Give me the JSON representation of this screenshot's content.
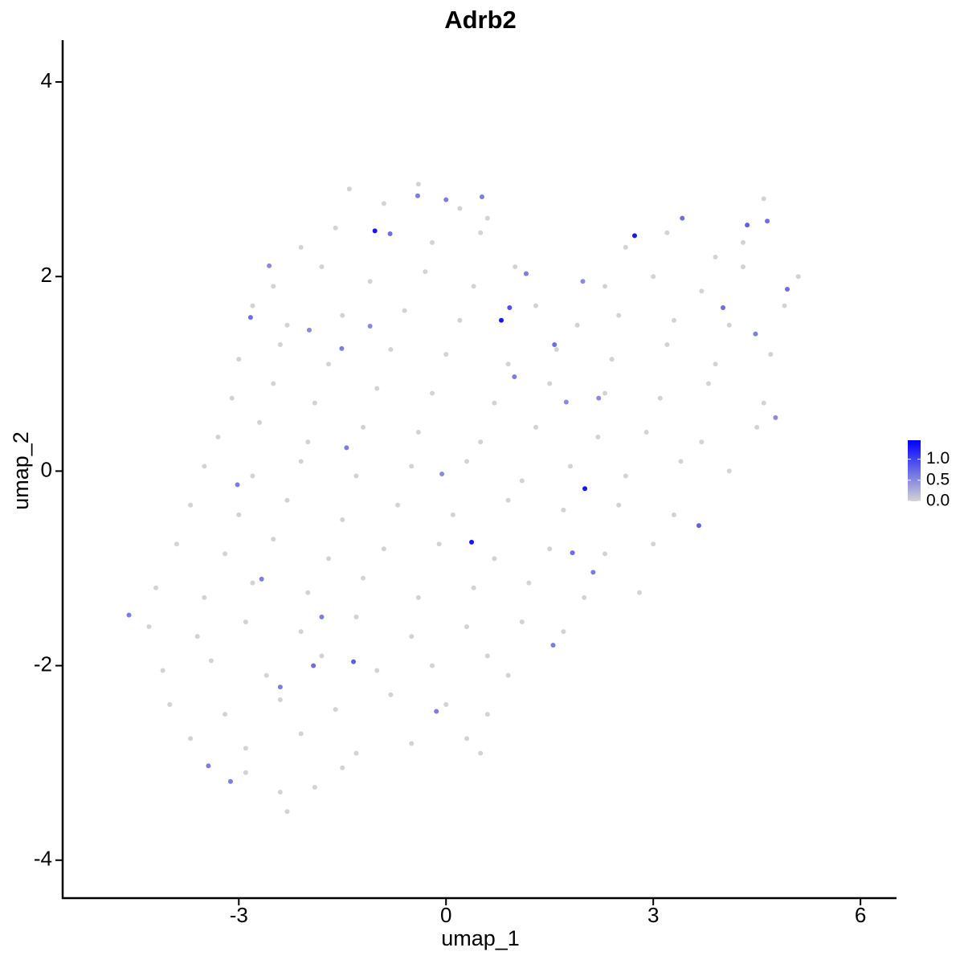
{
  "chart_data": {
    "type": "scatter",
    "title": "Adrb2",
    "xlabel": "umap_1",
    "ylabel": "umap_2",
    "xlim": [
      -5.55,
      6.51
    ],
    "ylim": [
      -4.39,
      4.43
    ],
    "xticks": [
      -3,
      0,
      3,
      6
    ],
    "yticks": [
      -4,
      -2,
      0,
      2,
      4
    ],
    "colorbar": {
      "lim": [
        0,
        1.45
      ],
      "ticks": [
        {
          "value": 0,
          "label": "0.0"
        },
        {
          "value": 0.5,
          "label": "0.5"
        },
        {
          "value": 1,
          "label": "1.0"
        }
      ],
      "low_color": "#d3d3d3",
      "high_color": "#0000ff"
    },
    "points": {
      "x": [
        -1.4,
        -0.9,
        -0.4,
        0.2,
        0.6,
        -2.1,
        -1.6,
        -0.2,
        0.5,
        2.6,
        3.2,
        3.9,
        4.6,
        4.3,
        -2.5,
        -1.8,
        -1.1,
        -0.3,
        0.4,
        1.0,
        2.3,
        3.0,
        3.7,
        4.3,
        5.1,
        -2.8,
        -2.3,
        -1.5,
        -0.6,
        0.2,
        1.3,
        1.9,
        2.5,
        3.3,
        4.1,
        4.9,
        -3.0,
        -2.4,
        -1.7,
        -0.8,
        0.0,
        0.9,
        1.6,
        2.4,
        3.2,
        3.9,
        4.7,
        -3.1,
        -2.5,
        -1.9,
        -1.0,
        -0.2,
        0.7,
        1.5,
        2.3,
        3.1,
        3.8,
        4.6,
        -3.3,
        -2.7,
        -2.0,
        -1.2,
        -0.4,
        0.5,
        1.3,
        2.2,
        2.9,
        3.7,
        4.5,
        -3.5,
        -2.8,
        -2.1,
        -1.3,
        -0.5,
        0.3,
        1.1,
        1.8,
        2.6,
        3.4,
        4.1,
        -3.7,
        -3.0,
        -2.3,
        -1.5,
        -0.7,
        0.1,
        0.9,
        1.7,
        2.5,
        3.3,
        -3.9,
        -3.2,
        -2.5,
        -1.7,
        -0.9,
        -0.1,
        0.7,
        1.5,
        2.3,
        3.0,
        -4.2,
        -3.5,
        -2.8,
        -2.0,
        -1.2,
        -0.4,
        0.4,
        1.2,
        2.0,
        2.8,
        -4.3,
        -3.6,
        -2.9,
        -2.1,
        -1.3,
        -0.5,
        0.3,
        1.1,
        1.7,
        -4.1,
        -3.4,
        -2.6,
        -1.8,
        -1.0,
        -0.2,
        0.6,
        0.9,
        -4.0,
        -3.2,
        -2.4,
        -1.6,
        -0.8,
        0.0,
        0.6,
        -3.7,
        -2.9,
        -2.1,
        -1.3,
        -0.5,
        0.3,
        0.5,
        -2.9,
        -2.4,
        -1.9,
        -2.3,
        -1.5,
        -1.03,
        2.73,
        0.8,
        2.01,
        0.37,
        0.92,
        -0.81,
        -2.83,
        -1.51,
        -1.44,
        -1.34,
        -1.92,
        3.66,
        3.42,
        4.36,
        4.65,
        4.94,
        4.48,
        4.01,
        1.57,
        1.83,
        2.13,
        1.55,
        -0.14,
        -2.4,
        -3.12,
        -3.44,
        -3.02,
        -2.67,
        -4.59,
        -1.8,
        0.0,
        0.52,
        -0.41,
        1.16,
        1.98,
        0.99,
        -0.06,
        -1.98,
        -2.56,
        -1.1,
        2.21,
        4.77,
        1.74
      ],
      "y": [
        2.9,
        2.75,
        2.95,
        2.7,
        2.6,
        2.3,
        2.5,
        2.35,
        2.45,
        2.3,
        2.45,
        2.2,
        2.8,
        2.35,
        1.9,
        2.1,
        1.95,
        2.05,
        1.9,
        2.1,
        1.9,
        2.0,
        1.85,
        2.1,
        2.0,
        1.7,
        1.5,
        1.6,
        1.65,
        1.55,
        1.7,
        1.5,
        1.6,
        1.55,
        1.5,
        1.7,
        1.15,
        1.3,
        1.1,
        1.25,
        1.2,
        1.1,
        1.25,
        1.15,
        1.3,
        1.1,
        1.2,
        0.75,
        0.9,
        0.7,
        0.85,
        0.8,
        0.7,
        0.9,
        0.8,
        0.75,
        0.9,
        0.7,
        0.35,
        0.5,
        0.3,
        0.45,
        0.4,
        0.3,
        0.45,
        0.35,
        0.4,
        0.3,
        0.45,
        0.05,
        -0.05,
        0.1,
        -0.05,
        0.05,
        0.1,
        -0.1,
        0.05,
        -0.05,
        0.1,
        0.0,
        -0.35,
        -0.45,
        -0.3,
        -0.5,
        -0.35,
        -0.45,
        -0.3,
        -0.4,
        -0.35,
        -0.45,
        -0.75,
        -0.85,
        -0.7,
        -0.9,
        -0.8,
        -0.75,
        -0.9,
        -0.8,
        -0.85,
        -0.75,
        -1.2,
        -1.3,
        -1.15,
        -1.25,
        -1.1,
        -1.3,
        -1.2,
        -1.15,
        -1.3,
        -1.25,
        -1.6,
        -1.7,
        -1.55,
        -1.65,
        -1.5,
        -1.7,
        -1.6,
        -1.55,
        -1.65,
        -2.05,
        -1.95,
        -2.1,
        -1.9,
        -2.05,
        -2.0,
        -1.9,
        -2.1,
        -2.4,
        -2.5,
        -2.35,
        -2.45,
        -2.3,
        -2.4,
        -2.5,
        -2.75,
        -2.85,
        -2.7,
        -2.9,
        -2.8,
        -2.75,
        -2.9,
        -3.1,
        -3.3,
        -3.25,
        -3.5,
        -3.05,
        2.47,
        2.42,
        1.55,
        -0.18,
        -0.73,
        1.68,
        2.44,
        1.58,
        1.26,
        0.24,
        -1.96,
        -2.0,
        -0.56,
        2.6,
        2.53,
        2.57,
        1.87,
        1.41,
        1.68,
        1.3,
        -0.84,
        -1.04,
        -1.79,
        -2.47,
        -2.22,
        -3.19,
        -3.03,
        -0.14,
        -1.11,
        -1.48,
        -1.5,
        2.79,
        2.82,
        2.83,
        2.03,
        1.95,
        0.97,
        -0.03,
        1.45,
        2.11,
        1.49,
        0.75,
        0.55,
        0.71
      ],
      "expression": [
        0,
        0,
        0,
        0,
        0,
        0,
        0,
        0,
        0,
        0,
        0,
        0,
        0,
        0,
        0,
        0,
        0,
        0,
        0,
        0,
        0,
        0,
        0,
        0,
        0,
        0,
        0,
        0,
        0,
        0,
        0,
        0,
        0,
        0,
        0,
        0,
        0,
        0,
        0,
        0,
        0,
        0,
        0,
        0,
        0,
        0,
        0,
        0,
        0,
        0,
        0,
        0,
        0,
        0,
        0,
        0,
        0,
        0,
        0,
        0,
        0,
        0,
        0,
        0,
        0,
        0,
        0,
        0,
        0,
        0,
        0,
        0,
        0,
        0,
        0,
        0,
        0,
        0,
        0,
        0,
        0,
        0,
        0,
        0,
        0,
        0,
        0,
        0,
        0,
        0,
        0,
        0,
        0,
        0,
        0,
        0,
        0,
        0,
        0,
        0,
        0,
        0,
        0,
        0,
        0,
        0,
        0,
        0,
        0,
        0,
        0,
        0,
        0,
        0,
        0,
        0,
        0,
        0,
        0,
        0,
        0,
        0,
        0,
        0,
        0,
        0,
        0,
        0,
        0,
        0,
        0,
        0,
        0,
        0,
        0,
        0,
        0,
        0,
        0,
        0,
        0,
        0,
        0,
        0,
        0,
        0,
        1.3,
        1.3,
        1.3,
        1.3,
        1.3,
        0.9,
        0.7,
        0.7,
        0.6,
        0.6,
        0.8,
        0.7,
        0.8,
        0.7,
        0.8,
        0.7,
        0.7,
        0.6,
        0.7,
        0.7,
        0.7,
        0.6,
        0.6,
        0.6,
        0.6,
        0.6,
        0.6,
        0.6,
        0.6,
        0.6,
        0.6,
        0.6,
        0.6,
        0.6,
        0.6,
        0.5,
        0.6,
        0.5,
        0.5,
        0.5,
        0.5,
        0.5,
        0.5,
        0.5
      ]
    }
  }
}
